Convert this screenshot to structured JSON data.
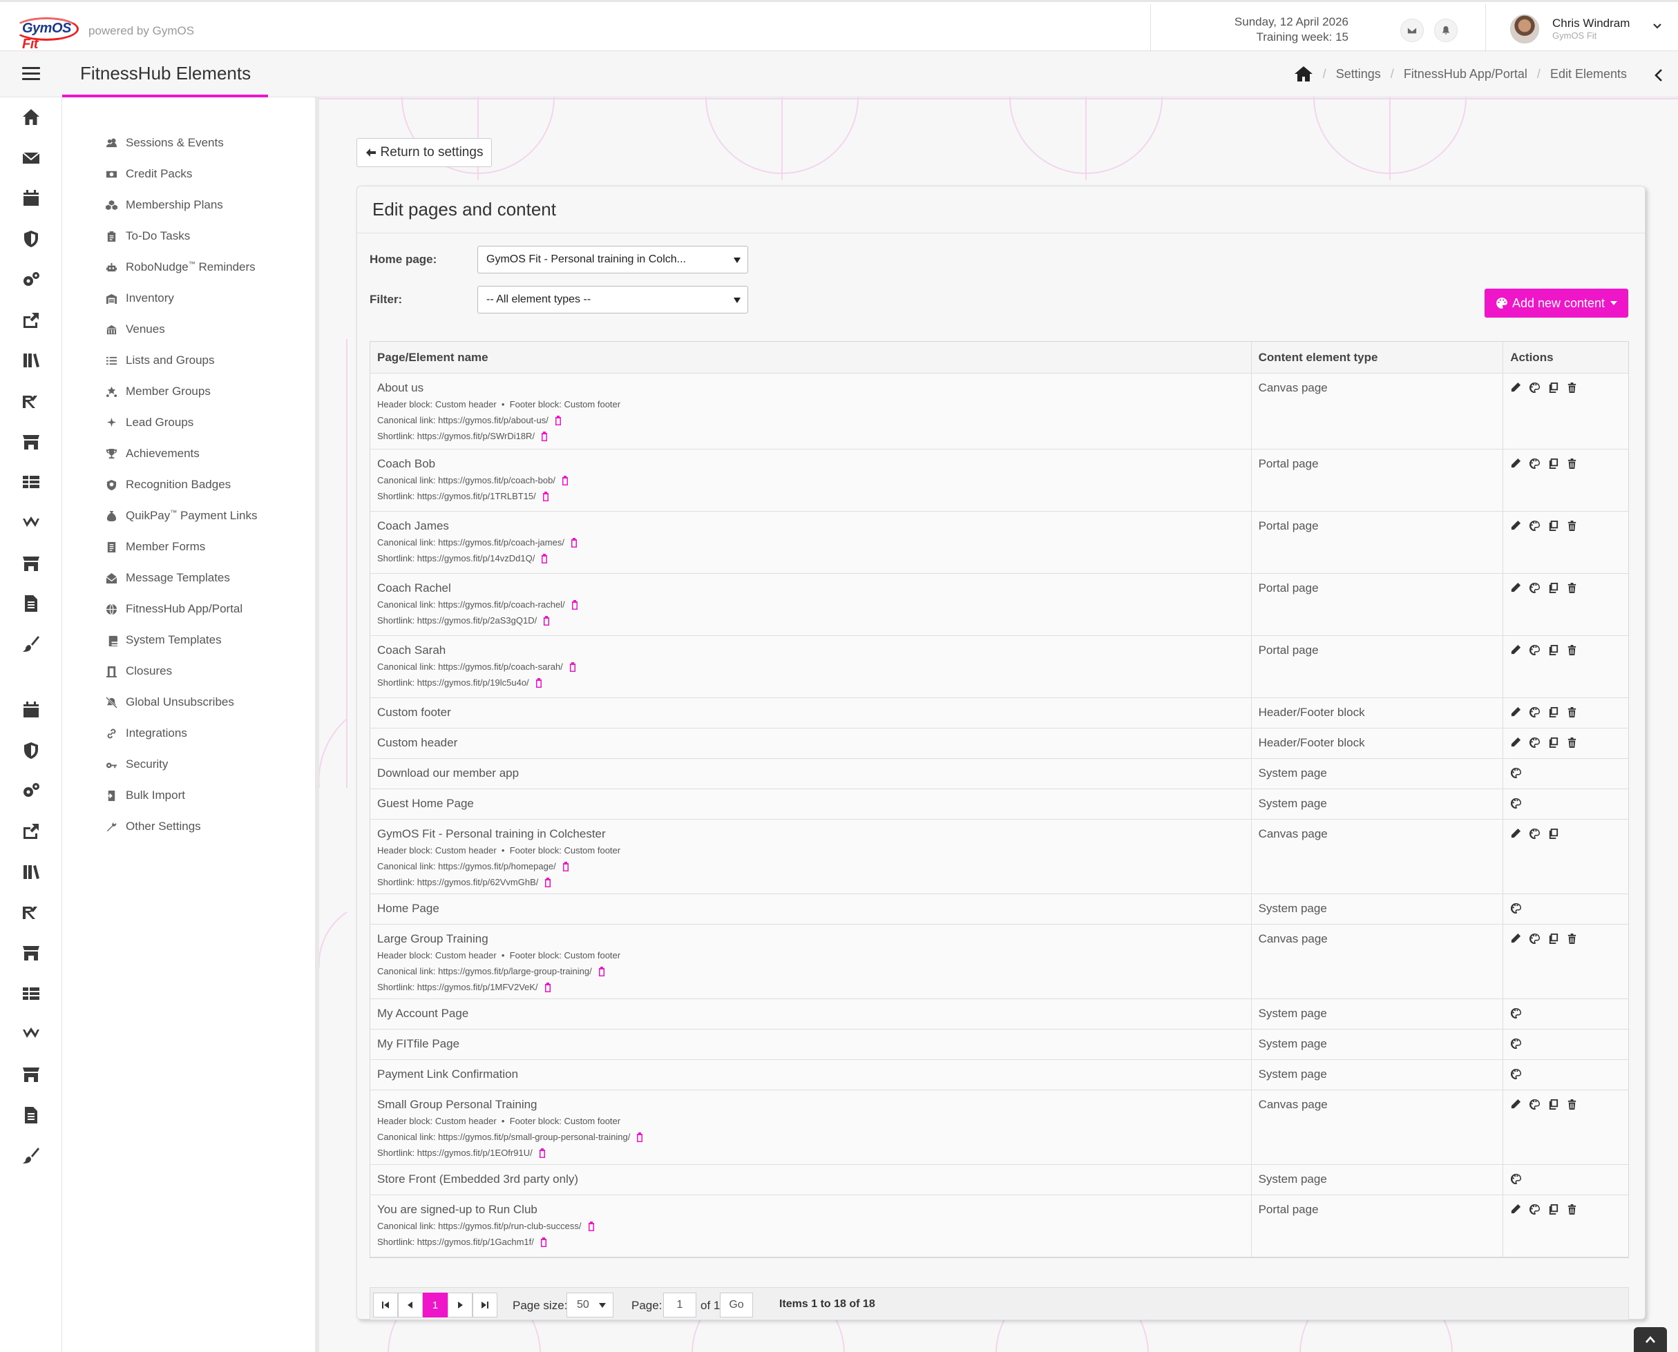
{
  "header": {
    "logo_text_a": "GymOS",
    "logo_text_b": "Fit",
    "powered_by": "powered by GymOS",
    "date": "Sunday, 12 April 2026",
    "training_week": "Training week: 15",
    "user_name": "Chris Windram",
    "user_org": "GymOS Fit"
  },
  "titlebar": {
    "title": "FitnessHub Elements",
    "breadcrumb": [
      "Settings",
      "FitnessHub App/Portal",
      "Edit Elements"
    ]
  },
  "menu": {
    "items": [
      {
        "label": "Sessions & Events",
        "icon": "users-icon"
      },
      {
        "label": "Credit Packs",
        "icon": "money-icon"
      },
      {
        "label": "Membership Plans",
        "icon": "cubes-icon"
      },
      {
        "label": "To-Do Tasks",
        "icon": "clipboard-icon"
      },
      {
        "label": "RoboNudge",
        "tm": "™",
        "suffix": " Reminders",
        "icon": "robot-icon"
      },
      {
        "label": "Inventory",
        "icon": "warehouse-icon"
      },
      {
        "label": "Venues",
        "icon": "building-icon"
      },
      {
        "label": "Lists and Groups",
        "icon": "list-icon"
      },
      {
        "label": "Member Groups",
        "icon": "star-group-icon"
      },
      {
        "label": "Lead Groups",
        "icon": "sparkle-icon"
      },
      {
        "label": "Achievements",
        "icon": "trophy-icon"
      },
      {
        "label": "Recognition Badges",
        "icon": "badge-icon"
      },
      {
        "label": "QuikPay",
        "tm": "™",
        "suffix": " Payment Links",
        "icon": "moneybag-icon"
      },
      {
        "label": "Member Forms",
        "icon": "form-icon"
      },
      {
        "label": "Message Templates",
        "icon": "envelope-open-icon"
      },
      {
        "label": "FitnessHub App/Portal",
        "icon": "globe-icon"
      },
      {
        "label": "System Templates",
        "icon": "file-icon"
      },
      {
        "label": "Closures",
        "icon": "door-icon"
      },
      {
        "label": "Global Unsubscribes",
        "icon": "bell-slash-icon"
      },
      {
        "label": "Integrations",
        "icon": "link-icon"
      },
      {
        "label": "Security",
        "icon": "key-icon"
      },
      {
        "label": "Bulk Import",
        "icon": "import-icon"
      },
      {
        "label": "Other Settings",
        "icon": "wrench-icon"
      }
    ]
  },
  "main": {
    "return_label": "Return to settings",
    "panel_title": "Edit pages and content",
    "home_page_label": "Home page:",
    "home_page_value": "GymOS Fit - Personal training in Colch...",
    "filter_label": "Filter:",
    "filter_value": "-- All element types --",
    "add_label": "Add new content",
    "columns": [
      "Page/Element name",
      "Content element type",
      "Actions"
    ],
    "rows": [
      {
        "name": "About us",
        "type": "Canvas page",
        "blocks": "Header block: Custom header  •  Footer block: Custom footer",
        "canonical": "Canonical link: https://gymos.fit/p/about-us/",
        "shortlink": "Shortlink: https://gymos.fit/p/SWrDi18R/",
        "actions": [
          "edit",
          "design",
          "copy",
          "delete"
        ]
      },
      {
        "name": "Coach Bob",
        "type": "Portal page",
        "canonical": "Canonical link: https://gymos.fit/p/coach-bob/",
        "shortlink": "Shortlink: https://gymos.fit/p/1TRLBT15/",
        "actions": [
          "edit",
          "design",
          "copy",
          "delete"
        ]
      },
      {
        "name": "Coach James",
        "type": "Portal page",
        "canonical": "Canonical link: https://gymos.fit/p/coach-james/",
        "shortlink": "Shortlink: https://gymos.fit/p/14vzDd1Q/",
        "actions": [
          "edit",
          "design",
          "copy",
          "delete"
        ]
      },
      {
        "name": "Coach Rachel",
        "type": "Portal page",
        "canonical": "Canonical link: https://gymos.fit/p/coach-rachel/",
        "shortlink": "Shortlink: https://gymos.fit/p/2aS3gQ1D/",
        "actions": [
          "edit",
          "design",
          "copy",
          "delete"
        ]
      },
      {
        "name": "Coach Sarah",
        "type": "Portal page",
        "canonical": "Canonical link: https://gymos.fit/p/coach-sarah/",
        "shortlink": "Shortlink: https://gymos.fit/p/19lc5u4o/",
        "actions": [
          "edit",
          "design",
          "copy",
          "delete"
        ]
      },
      {
        "name": "Custom footer",
        "type": "Header/Footer block",
        "actions": [
          "edit",
          "design",
          "copy",
          "delete"
        ]
      },
      {
        "name": "Custom header",
        "type": "Header/Footer block",
        "actions": [
          "edit",
          "design",
          "copy",
          "delete"
        ]
      },
      {
        "name": "Download our member app",
        "type": "System page",
        "actions": [
          "design"
        ]
      },
      {
        "name": "Guest Home Page",
        "type": "System page",
        "actions": [
          "design"
        ]
      },
      {
        "name": "GymOS Fit - Personal training in Colchester",
        "type": "Canvas page",
        "blocks": "Header block: Custom header  •  Footer block: Custom footer",
        "canonical": "Canonical link: https://gymos.fit/p/homepage/",
        "shortlink": "Shortlink: https://gymos.fit/p/62VvmGhB/",
        "actions": [
          "edit",
          "design",
          "copy"
        ]
      },
      {
        "name": "Home Page",
        "type": "System page",
        "actions": [
          "design"
        ]
      },
      {
        "name": "Large Group Training",
        "type": "Canvas page",
        "blocks": "Header block: Custom header  •  Footer block: Custom footer",
        "canonical": "Canonical link: https://gymos.fit/p/large-group-training/",
        "shortlink": "Shortlink: https://gymos.fit/p/1MFV2VeK/",
        "actions": [
          "edit",
          "design",
          "copy",
          "delete"
        ]
      },
      {
        "name": "My Account Page",
        "type": "System page",
        "actions": [
          "design"
        ]
      },
      {
        "name": "My FITfile Page",
        "type": "System page",
        "actions": [
          "design"
        ]
      },
      {
        "name": "Payment Link Confirmation",
        "type": "System page",
        "actions": [
          "design"
        ]
      },
      {
        "name": "Small Group Personal Training",
        "type": "Canvas page",
        "blocks": "Header block: Custom header  •  Footer block: Custom footer",
        "canonical": "Canonical link: https://gymos.fit/p/small-group-personal-training/",
        "shortlink": "Shortlink: https://gymos.fit/p/1EOfr91U/",
        "actions": [
          "edit",
          "design",
          "copy",
          "delete"
        ]
      },
      {
        "name": "Store Front (Embedded 3rd party only)",
        "type": "System page",
        "actions": [
          "design"
        ]
      },
      {
        "name": "You are signed-up to Run Club",
        "type": "Portal page",
        "canonical": "Canonical link: https://gymos.fit/p/run-club-success/",
        "shortlink": "Shortlink: https://gymos.fit/p/1Gachm1f/",
        "actions": [
          "edit",
          "design",
          "copy",
          "delete"
        ]
      }
    ]
  },
  "pager": {
    "current_page": "1",
    "page_size_label": "Page size:",
    "page_size": "50",
    "page_label": "Page:",
    "page_input": "1",
    "of_label": "of 1",
    "go_label": "Go",
    "items_info": "Items 1 to 18 of 18"
  },
  "colors": {
    "accent": "#ef15c8"
  }
}
